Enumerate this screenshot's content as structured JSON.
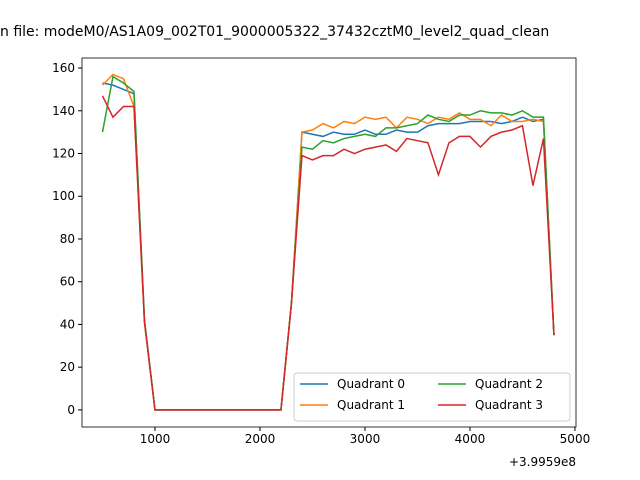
{
  "chart_data": {
    "type": "line",
    "title": "n file: modeM0/AS1A09_002T01_9000005322_37432cztM0_level2_quad_clean",
    "x_offset_label": "+3.9959e8",
    "x": [
      500,
      600,
      700,
      800,
      900,
      1000,
      1100,
      1200,
      1300,
      1400,
      1500,
      1600,
      1700,
      1800,
      1900,
      2000,
      2100,
      2200,
      2300,
      2400,
      2500,
      2600,
      2700,
      2800,
      2900,
      3000,
      3100,
      3200,
      3300,
      3400,
      3500,
      3600,
      3700,
      3800,
      3900,
      4000,
      4100,
      4200,
      4300,
      4400,
      4500,
      4600,
      4700,
      4800
    ],
    "series": [
      {
        "name": "Quadrant 0",
        "color": "#1f77b4",
        "values": [
          153,
          152,
          150,
          148,
          42,
          0,
          0,
          0,
          0,
          0,
          0,
          0,
          0,
          0,
          0,
          0,
          0,
          0,
          50,
          130,
          129,
          128,
          130,
          129,
          129,
          131,
          129,
          129,
          131,
          130,
          130,
          133,
          134,
          134,
          134,
          135,
          135,
          135,
          134,
          135,
          137,
          135,
          136,
          35
        ]
      },
      {
        "name": "Quadrant 1",
        "color": "#ff7f0e",
        "values": [
          152,
          157,
          155,
          142,
          41,
          0,
          0,
          0,
          0,
          0,
          0,
          0,
          0,
          0,
          0,
          0,
          0,
          0,
          50,
          130,
          131,
          134,
          132,
          135,
          134,
          137,
          136,
          137,
          132,
          137,
          136,
          134,
          137,
          136,
          139,
          136,
          136,
          133,
          138,
          135,
          135,
          136,
          135,
          35
        ]
      },
      {
        "name": "Quadrant 2",
        "color": "#2ca02c",
        "values": [
          130,
          156,
          153,
          149,
          42,
          0,
          0,
          0,
          0,
          0,
          0,
          0,
          0,
          0,
          0,
          0,
          0,
          0,
          50,
          123,
          122,
          126,
          125,
          127,
          128,
          129,
          128,
          132,
          132,
          133,
          134,
          138,
          136,
          135,
          138,
          138,
          140,
          139,
          139,
          138,
          140,
          137,
          137,
          35
        ]
      },
      {
        "name": "Quadrant 3",
        "color": "#d62728",
        "values": [
          147,
          137,
          142,
          142,
          41,
          0,
          0,
          0,
          0,
          0,
          0,
          0,
          0,
          0,
          0,
          0,
          0,
          0,
          50,
          119,
          117,
          119,
          119,
          122,
          120,
          122,
          123,
          124,
          121,
          127,
          126,
          125,
          110,
          125,
          128,
          128,
          123,
          128,
          130,
          131,
          133,
          105,
          127,
          35
        ]
      }
    ],
    "xlim": [
      305,
      5010
    ],
    "ylim": [
      -8,
      164.7
    ],
    "xticks": [
      1000,
      2000,
      3000,
      4000,
      5000
    ],
    "yticks": [
      0,
      20,
      40,
      60,
      80,
      100,
      120,
      140,
      160
    ],
    "legend": "lower right",
    "legend_columns": 2
  }
}
